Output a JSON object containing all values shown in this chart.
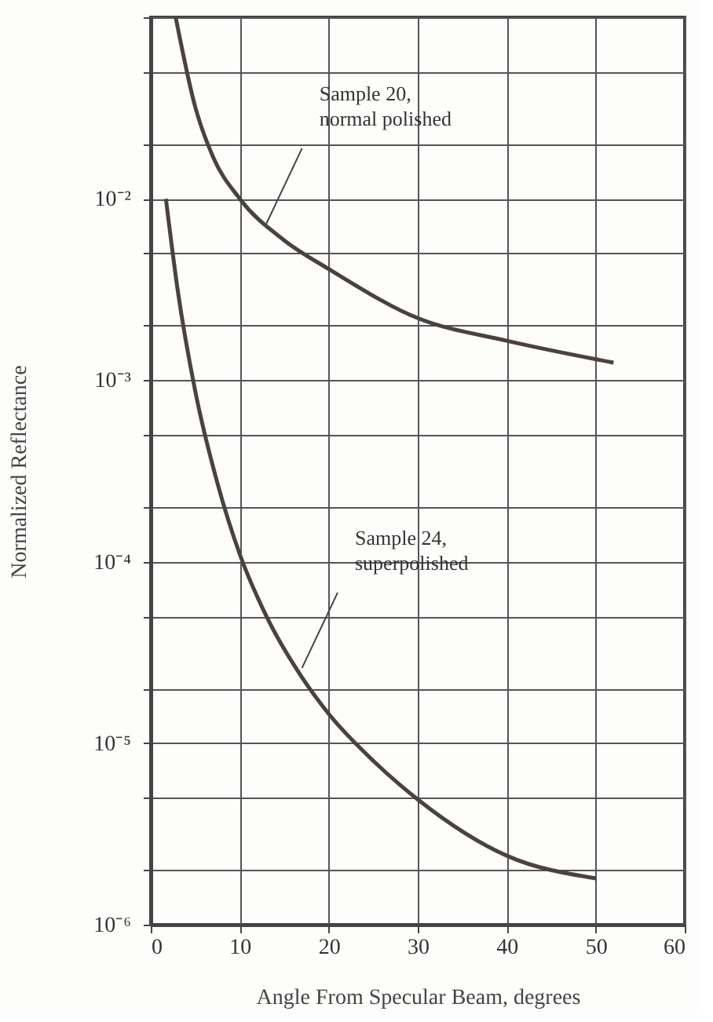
{
  "chart_data": {
    "type": "line",
    "xlabel": "Angle From Specular Beam, degrees",
    "ylabel": "Normalized Reflectance",
    "log": "y",
    "xlim": [
      0,
      60
    ],
    "xticks": [
      0,
      10,
      20,
      30,
      40,
      50,
      60
    ],
    "ylim": [
      1e-06,
      0.1
    ],
    "yticks": [
      {
        "value": 1e-06,
        "label": "10⁻⁶"
      },
      {
        "value": 2e-06,
        "label": null
      },
      {
        "value": 5e-06,
        "label": null
      },
      {
        "value": 1e-05,
        "label": "10⁻⁵"
      },
      {
        "value": 2e-05,
        "label": null
      },
      {
        "value": 5e-05,
        "label": null
      },
      {
        "value": 0.0001,
        "label": "10⁻⁴"
      },
      {
        "value": 0.0002,
        "label": null
      },
      {
        "value": 0.0005,
        "label": null
      },
      {
        "value": 0.001,
        "label": "10⁻³"
      },
      {
        "value": 0.002,
        "label": null
      },
      {
        "value": 0.005,
        "label": null
      },
      {
        "value": 0.01,
        "label": "10⁻²"
      },
      {
        "value": 0.02,
        "label": null
      },
      {
        "value": 0.05,
        "label": null
      },
      {
        "value": 0.1,
        "label": null
      }
    ],
    "grid": true,
    "marker": "none",
    "line_style": "solid",
    "series": [
      {
        "color": "#4a4242",
        "x": [
          2.8,
          5,
          7,
          10,
          15,
          20,
          30,
          40,
          52
        ],
        "values": [
          0.1,
          0.032,
          0.017,
          0.01,
          0.0059,
          0.0041,
          0.0022,
          0.00165,
          0.00125
        ]
      },
      {
        "color": "#4a4242",
        "x": [
          1.7,
          3,
          5,
          7.5,
          10,
          13,
          17,
          20,
          25,
          30,
          40,
          50
        ],
        "values": [
          0.01,
          0.0032,
          0.00087,
          0.00027,
          0.00011,
          5e-05,
          2.3e-05,
          1.45e-05,
          8e-06,
          4.9e-06,
          2.4e-06,
          1.8e-06
        ]
      }
    ],
    "annotations": [
      {
        "text": "Sample 20,\nnormal polished",
        "x": 13,
        "y": 0.0073
      },
      {
        "text": "Sample 24,\nsuperpolished",
        "x": 17,
        "y": 2.6e-05
      }
    ]
  }
}
